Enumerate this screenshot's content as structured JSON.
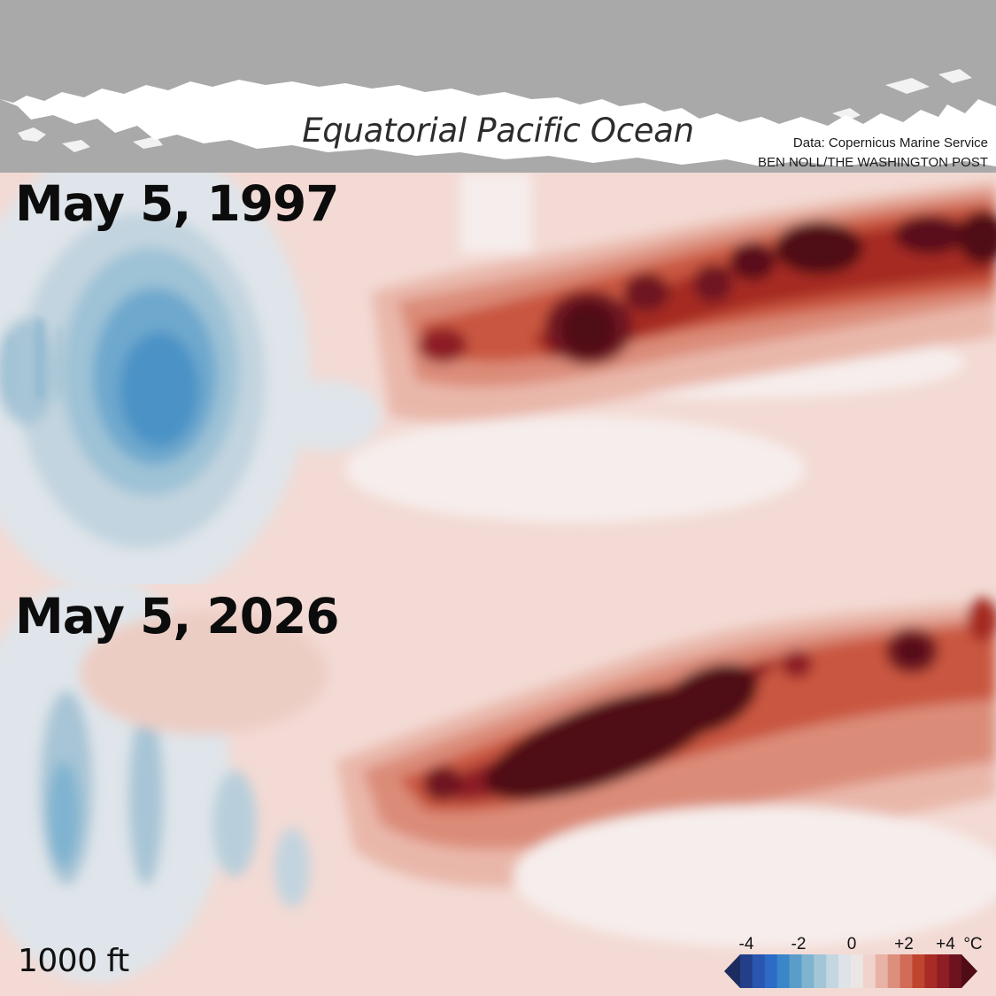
{
  "header": {
    "title": "Equatorial Pacific Ocean",
    "credit_source": "Data: Copernicus Marine Service",
    "credit_author": "BEN NOLL/THE WASHINGTON POST"
  },
  "panels": [
    {
      "date": "May 5, 1997"
    },
    {
      "date": "May 5, 2026"
    }
  ],
  "depth_label": "1000 ft",
  "legend": {
    "tick_labels": [
      "-4",
      "-2",
      "0",
      "+2",
      "+4",
      "°C"
    ],
    "colors": [
      "#1d2c5e",
      "#233f8a",
      "#2a56b0",
      "#2c6bc7",
      "#3a86c8",
      "#5a9dc9",
      "#7fb3d0",
      "#a3c6d6",
      "#c4d6df",
      "#dde3e8",
      "#ebe6e4",
      "#f0d3cc",
      "#e8b3a6",
      "#dd8f7e",
      "#d06c57",
      "#c0452f",
      "#a82c25",
      "#8e1d25",
      "#6e1220",
      "#4f0c17"
    ]
  },
  "colors": {
    "land": "#a9a9a9",
    "ocean_top": "#ffffff",
    "text": "#0c0c0c"
  }
}
